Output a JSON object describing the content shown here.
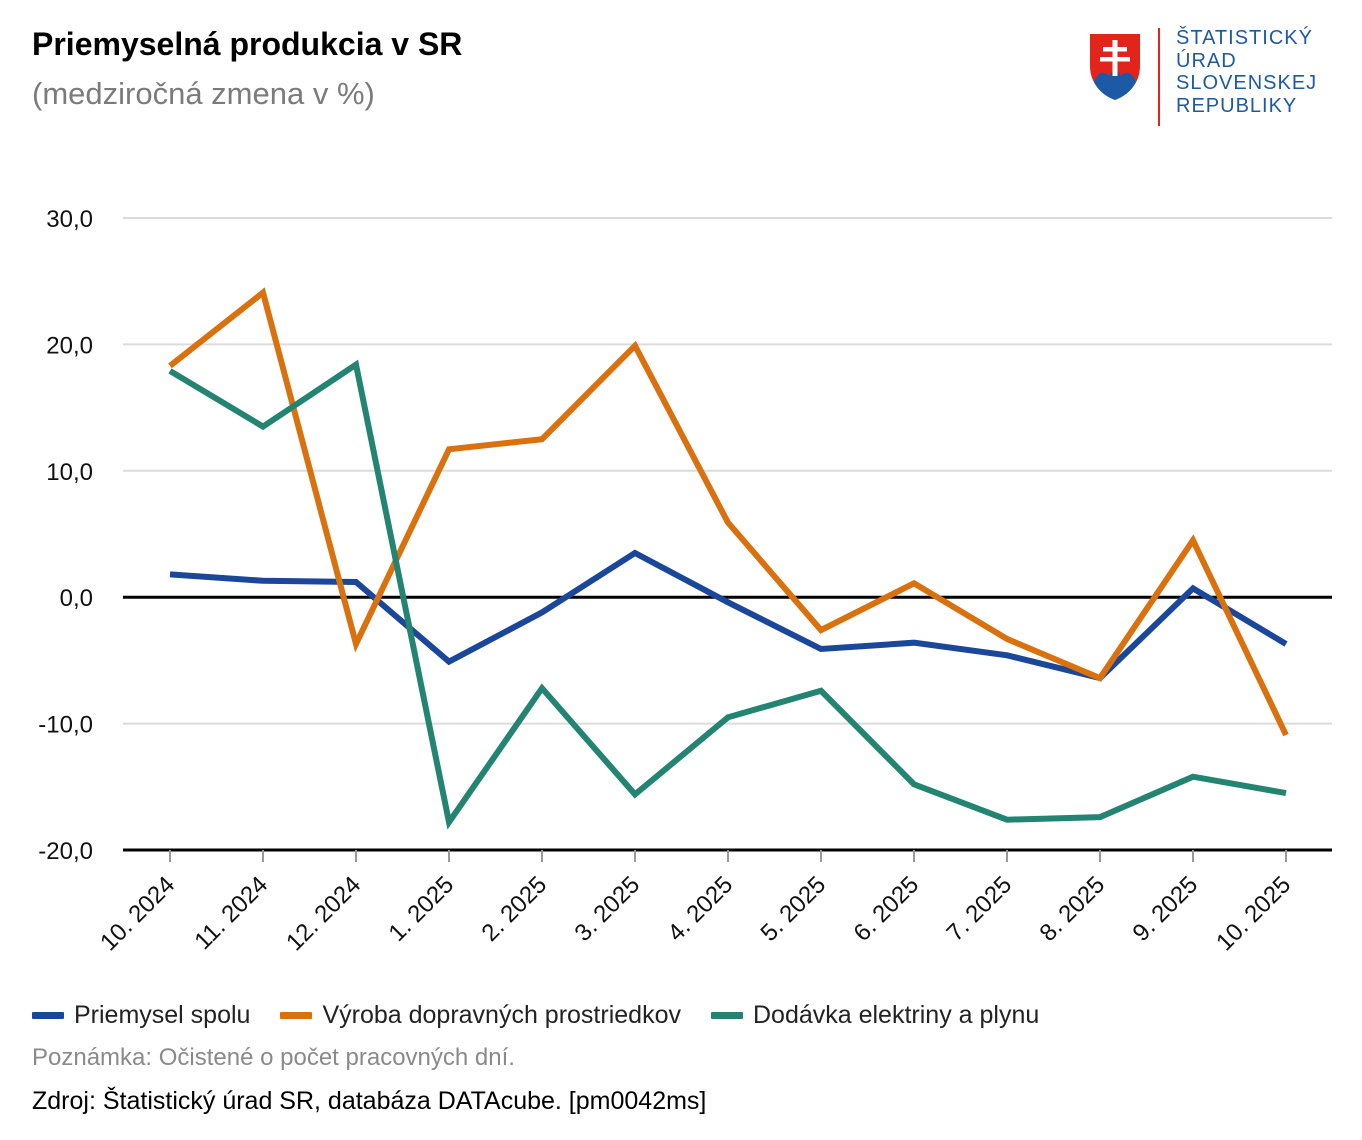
{
  "header": {
    "title": "Priemyselná produkcia v SR",
    "subtitle": "(medziročná zmena v %)"
  },
  "logo": {
    "icon": "slovak-coat-of-arms-icon",
    "lines": [
      "ŠTATISTICKÝ",
      "ÚRAD",
      "SLOVENSKEJ",
      "REPUBLIKY"
    ],
    "text_color": "#1d5aa5",
    "bar_color": "#e3241b"
  },
  "chart_data": {
    "type": "line",
    "title": "Priemyselná produkcia v SR",
    "subtitle": "(medziročná zmena v %)",
    "categories": [
      "10. 2024",
      "11. 2024",
      "12. 2024",
      "1. 2025",
      "2. 2025",
      "3. 2025",
      "4. 2025",
      "5. 2025",
      "6. 2025",
      "7. 2025",
      "8. 2025",
      "9. 2025",
      "10. 2025"
    ],
    "y_ticks": [
      "30,0",
      "20,0",
      "10,0",
      "0,0",
      "-10,0",
      "-20,0"
    ],
    "ylim": [
      -20,
      30
    ],
    "grid": true,
    "legend_position": "bottom-left",
    "series": [
      {
        "name": "Priemysel spolu",
        "color": "#1a4799",
        "values": [
          1.8,
          1.3,
          1.2,
          -5.1,
          -1.2,
          3.5,
          -0.4,
          -4.1,
          -3.6,
          -4.6,
          -6.4,
          0.7,
          -3.7
        ]
      },
      {
        "name": "Výroba dopravných prostriedkov",
        "color": "#d9710f",
        "values": [
          18.3,
          24.1,
          -3.7,
          11.7,
          12.5,
          19.9,
          5.9,
          -2.6,
          1.1,
          -3.3,
          -6.4,
          4.5,
          -10.9
        ]
      },
      {
        "name": "Dodávka elektriny a plynu",
        "color": "#238571",
        "values": [
          17.9,
          13.5,
          18.4,
          -17.8,
          -7.2,
          -15.6,
          -9.5,
          -7.4,
          -14.8,
          -17.6,
          -17.4,
          -14.2,
          -15.5
        ]
      }
    ]
  },
  "footer": {
    "note": "Poznámka: Očistené o počet pracovných dní.",
    "source": "Zdroj: Štatistický úrad SR, databáza DATAcube. [pm0042ms]"
  }
}
